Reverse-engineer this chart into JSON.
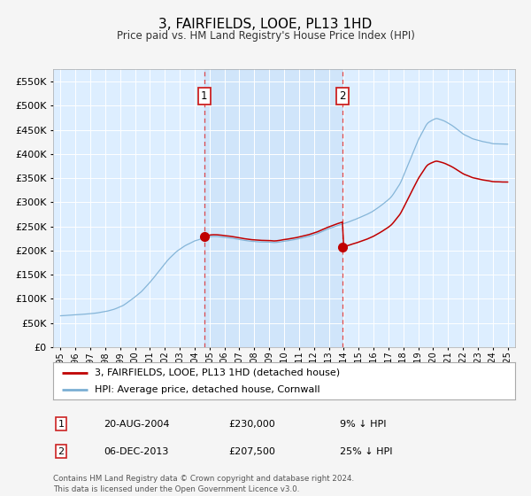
{
  "title": "3, FAIRFIELDS, LOOE, PL13 1HD",
  "subtitle": "Price paid vs. HM Land Registry's House Price Index (HPI)",
  "legend_line1": "3, FAIRFIELDS, LOOE, PL13 1HD (detached house)",
  "legend_line2": "HPI: Average price, detached house, Cornwall",
  "footnote": "Contains HM Land Registry data © Crown copyright and database right 2024.\nThis data is licensed under the Open Government Licence v3.0.",
  "sale1_date": "20-AUG-2004",
  "sale1_price": 230000,
  "sale1_label": "9% ↓ HPI",
  "sale2_date": "06-DEC-2013",
  "sale2_price": 207500,
  "sale2_label": "25% ↓ HPI",
  "hpi_color": "#7bafd4",
  "price_color": "#c00000",
  "marker_color": "#c00000",
  "bg_color": "#ddeeff",
  "shade_color": "#c5d9ef",
  "grid_color": "#ffffff",
  "fig_bg": "#f5f5f5",
  "sale1_x": 2004.64,
  "sale2_x": 2013.92,
  "ylim_min": 0,
  "ylim_max": 575000,
  "xlim_min": 1994.5,
  "xlim_max": 2025.5
}
